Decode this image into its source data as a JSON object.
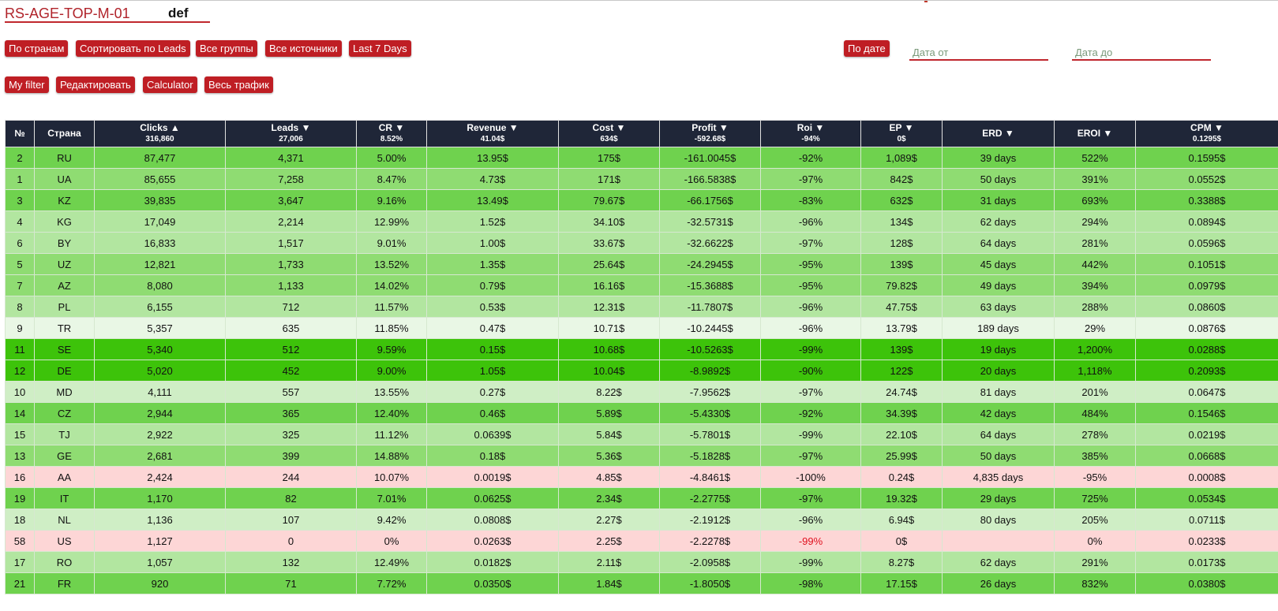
{
  "header": {
    "title": "RS-AGE-TOP-M-01",
    "subtitle": "def"
  },
  "toolbar": {
    "row1": [
      "По странам",
      "Сортировать по Leads",
      "Все группы",
      "Все источники",
      "Last 7 Days"
    ],
    "by_date_label": "По дате",
    "date_from_placeholder": "Дата от",
    "date_to_placeholder": "Дата до",
    "row2": [
      "My filter",
      "Редактировать",
      "Calculator",
      "Весь трафик"
    ]
  },
  "colors": {
    "button": "#bf1e24",
    "header_bg": "#1f2638",
    "negative_text": "#e0101e",
    "row_shades": {
      "bright": "#3dc30a",
      "strong": "#6fd24e",
      "medium": "#8fdc72",
      "light": "#b2e6a0",
      "pale": "#cfeec5",
      "faint": "#e9f7e5",
      "red": "#fdd6d6"
    }
  },
  "table": {
    "columns": [
      {
        "label": "№",
        "sub": ""
      },
      {
        "label": "Страна",
        "sub": ""
      },
      {
        "label": "Clicks ▲",
        "sub": "316,860"
      },
      {
        "label": "Leads ▼",
        "sub": "27,006"
      },
      {
        "label": "CR ▼",
        "sub": "8.52%"
      },
      {
        "label": "Revenue ▼",
        "sub": "41.04$"
      },
      {
        "label": "Cost ▼",
        "sub": "634$"
      },
      {
        "label": "Profit ▼",
        "sub": "-592.68$"
      },
      {
        "label": "Roi ▼",
        "sub": "-94%"
      },
      {
        "label": "EP ▼",
        "sub": "0$"
      },
      {
        "label": "ERD ▼",
        "sub": ""
      },
      {
        "label": "EROI ▼",
        "sub": ""
      },
      {
        "label": "CPM ▼",
        "sub": "0.1295$"
      }
    ],
    "rows": [
      {
        "shade": "strong",
        "cells": [
          "2",
          "RU",
          "87,477",
          "4,371",
          "5.00%",
          "13.95$",
          "175$",
          "-161.0045$",
          "-92%",
          "1,089$",
          "39 days",
          "522%",
          "0.1595$"
        ]
      },
      {
        "shade": "medium",
        "cells": [
          "1",
          "UA",
          "85,655",
          "7,258",
          "8.47%",
          "4.73$",
          "171$",
          "-166.5838$",
          "-97%",
          "842$",
          "50 days",
          "391%",
          "0.0552$"
        ]
      },
      {
        "shade": "strong",
        "cells": [
          "3",
          "KZ",
          "39,835",
          "3,647",
          "9.16%",
          "13.49$",
          "79.67$",
          "-66.1756$",
          "-83%",
          "632$",
          "31 days",
          "693%",
          "0.3388$"
        ]
      },
      {
        "shade": "light",
        "cells": [
          "4",
          "KG",
          "17,049",
          "2,214",
          "12.99%",
          "1.52$",
          "34.10$",
          "-32.5731$",
          "-96%",
          "134$",
          "62 days",
          "294%",
          "0.0894$"
        ]
      },
      {
        "shade": "light",
        "cells": [
          "6",
          "BY",
          "16,833",
          "1,517",
          "9.01%",
          "1.00$",
          "33.67$",
          "-32.6622$",
          "-97%",
          "128$",
          "64 days",
          "281%",
          "0.0596$"
        ]
      },
      {
        "shade": "medium",
        "cells": [
          "5",
          "UZ",
          "12,821",
          "1,733",
          "13.52%",
          "1.35$",
          "25.64$",
          "-24.2945$",
          "-95%",
          "139$",
          "45 days",
          "442%",
          "0.1051$"
        ]
      },
      {
        "shade": "medium",
        "cells": [
          "7",
          "AZ",
          "8,080",
          "1,133",
          "14.02%",
          "0.79$",
          "16.16$",
          "-15.3688$",
          "-95%",
          "79.82$",
          "49 days",
          "394%",
          "0.0979$"
        ]
      },
      {
        "shade": "light",
        "cells": [
          "8",
          "PL",
          "6,155",
          "712",
          "11.57%",
          "0.53$",
          "12.31$",
          "-11.7807$",
          "-96%",
          "47.75$",
          "63 days",
          "288%",
          "0.0860$"
        ]
      },
      {
        "shade": "faint",
        "cells": [
          "9",
          "TR",
          "5,357",
          "635",
          "11.85%",
          "0.47$",
          "10.71$",
          "-10.2445$",
          "-96%",
          "13.79$",
          "189 days",
          "29%",
          "0.0876$"
        ]
      },
      {
        "shade": "bright",
        "cells": [
          "11",
          "SE",
          "5,340",
          "512",
          "9.59%",
          "0.15$",
          "10.68$",
          "-10.5263$",
          "-99%",
          "139$",
          "19 days",
          "1,200%",
          "0.0288$"
        ]
      },
      {
        "shade": "bright",
        "cells": [
          "12",
          "DE",
          "5,020",
          "452",
          "9.00%",
          "1.05$",
          "10.04$",
          "-8.9892$",
          "-90%",
          "122$",
          "20 days",
          "1,118%",
          "0.2093$"
        ]
      },
      {
        "shade": "pale",
        "cells": [
          "10",
          "MD",
          "4,111",
          "557",
          "13.55%",
          "0.27$",
          "8.22$",
          "-7.9562$",
          "-97%",
          "24.74$",
          "81 days",
          "201%",
          "0.0647$"
        ]
      },
      {
        "shade": "strong",
        "cells": [
          "14",
          "CZ",
          "2,944",
          "365",
          "12.40%",
          "0.46$",
          "5.89$",
          "-5.4330$",
          "-92%",
          "34.39$",
          "42 days",
          "484%",
          "0.1546$"
        ]
      },
      {
        "shade": "light",
        "cells": [
          "15",
          "TJ",
          "2,922",
          "325",
          "11.12%",
          "0.0639$",
          "5.84$",
          "-5.7801$",
          "-99%",
          "22.10$",
          "64 days",
          "278%",
          "0.0219$"
        ]
      },
      {
        "shade": "medium",
        "cells": [
          "13",
          "GE",
          "2,681",
          "399",
          "14.88%",
          "0.18$",
          "5.36$",
          "-5.1828$",
          "-97%",
          "25.99$",
          "50 days",
          "385%",
          "0.0668$"
        ]
      },
      {
        "shade": "red",
        "cells": [
          "16",
          "AA",
          "2,424",
          "244",
          "10.07%",
          "0.0019$",
          "4.85$",
          "-4.8461$",
          "-100%",
          "0.24$",
          "4,835 days",
          "-95%",
          "0.0008$"
        ]
      },
      {
        "shade": "strong",
        "cells": [
          "19",
          "IT",
          "1,170",
          "82",
          "7.01%",
          "0.0625$",
          "2.34$",
          "-2.2775$",
          "-97%",
          "19.32$",
          "29 days",
          "725%",
          "0.0534$"
        ]
      },
      {
        "shade": "pale",
        "cells": [
          "18",
          "NL",
          "1,136",
          "107",
          "9.42%",
          "0.0808$",
          "2.27$",
          "-2.1912$",
          "-96%",
          "6.94$",
          "80 days",
          "205%",
          "0.0711$"
        ]
      },
      {
        "shade": "red",
        "roi_negative_highlight": true,
        "cells": [
          "58",
          "US",
          "1,127",
          "0",
          "0%",
          "0.0263$",
          "2.25$",
          "-2.2278$",
          "-99%",
          "0$",
          "",
          "0%",
          "0.0233$"
        ]
      },
      {
        "shade": "light",
        "cells": [
          "17",
          "RO",
          "1,057",
          "132",
          "12.49%",
          "0.0182$",
          "2.11$",
          "-2.0958$",
          "-99%",
          "8.27$",
          "62 days",
          "291%",
          "0.0173$"
        ]
      },
      {
        "shade": "strong",
        "cells": [
          "21",
          "FR",
          "920",
          "71",
          "7.72%",
          "0.0350$",
          "1.84$",
          "-1.8050$",
          "-98%",
          "17.15$",
          "26 days",
          "832%",
          "0.0380$"
        ]
      }
    ]
  }
}
